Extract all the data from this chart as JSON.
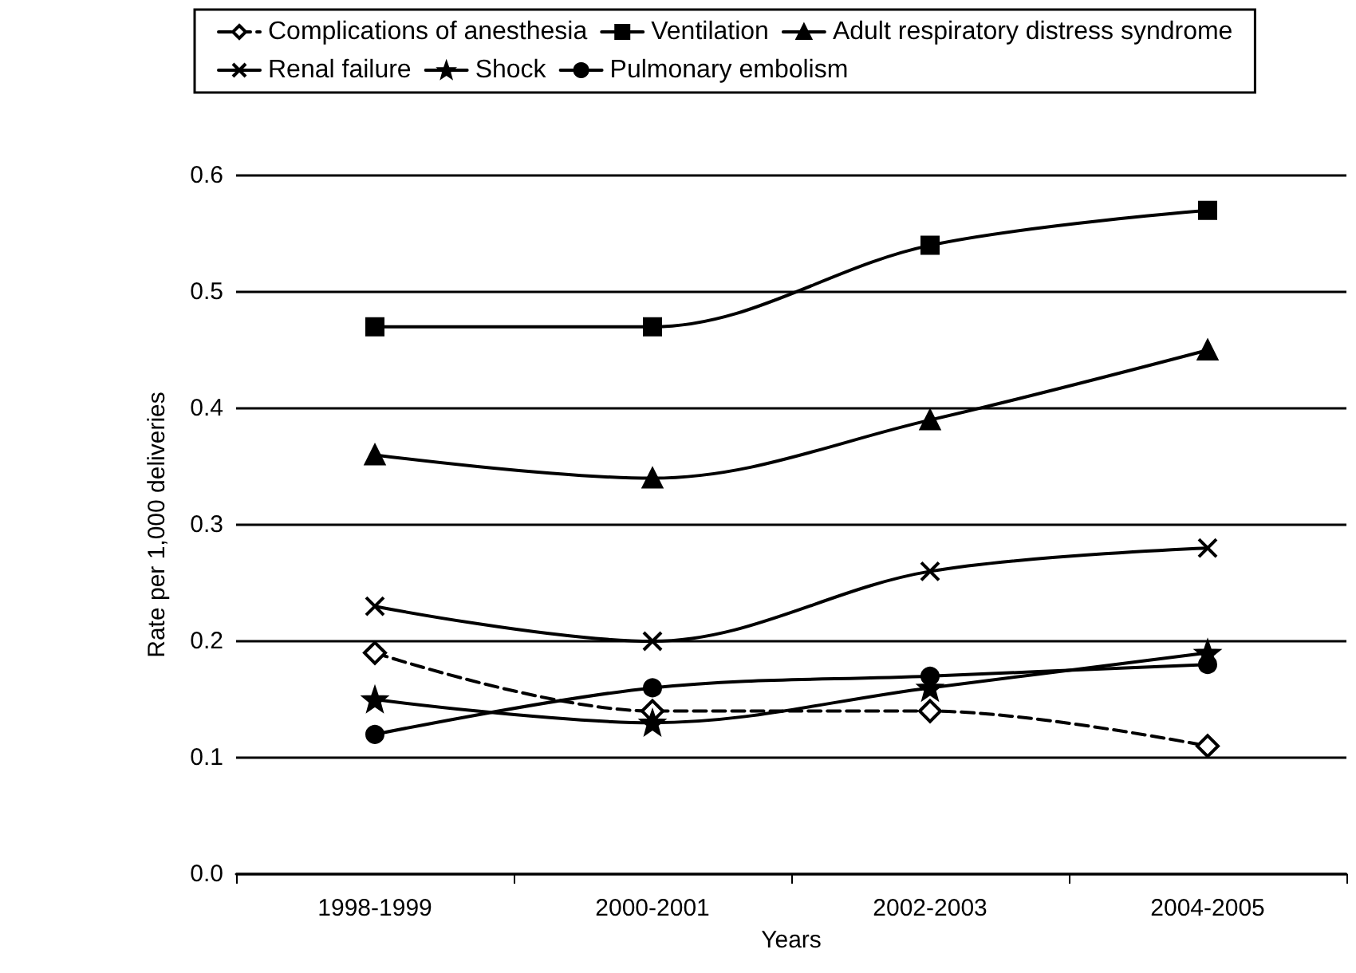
{
  "chart_data": {
    "type": "line",
    "xlabel": "Years",
    "ylabel": "Rate per 1,000 deliveries",
    "categories": [
      "1998-1999",
      "2000-2001",
      "2002-2003",
      "2004-2005"
    ],
    "ylim": [
      0,
      0.6
    ],
    "yticks": [
      {
        "value": 0,
        "label": "0.0"
      },
      0.1,
      0.2,
      0.3,
      0.4,
      0.5,
      0.6
    ],
    "grid": "y",
    "legend": "top",
    "line_style": "solid",
    "series": [
      {
        "name": "Complications of anesthesia",
        "color": "#000000",
        "marker": "diamond",
        "line_style": "dashed",
        "values": [
          0.19,
          0.14,
          0.14,
          0.11
        ]
      },
      {
        "name": "Ventilation",
        "color": "#000000",
        "marker": "square",
        "values": [
          0.47,
          0.47,
          0.54,
          0.57
        ]
      },
      {
        "name": "Adult respiratory distress syndrome",
        "color": "#000000",
        "marker": "triangle",
        "values": [
          0.36,
          0.34,
          0.39,
          0.45
        ]
      },
      {
        "name": "Renal failure",
        "color": "#000000",
        "marker": "cross",
        "values": [
          0.23,
          0.2,
          0.26,
          0.28
        ]
      },
      {
        "name": "Shock",
        "color": "#000000",
        "marker": "star",
        "values": [
          0.15,
          0.13,
          0.16,
          0.19
        ]
      },
      {
        "name": "Pulmonary embolism",
        "color": "#000000",
        "marker": "circle",
        "values": [
          0.12,
          0.16,
          0.17,
          0.18
        ]
      }
    ]
  }
}
